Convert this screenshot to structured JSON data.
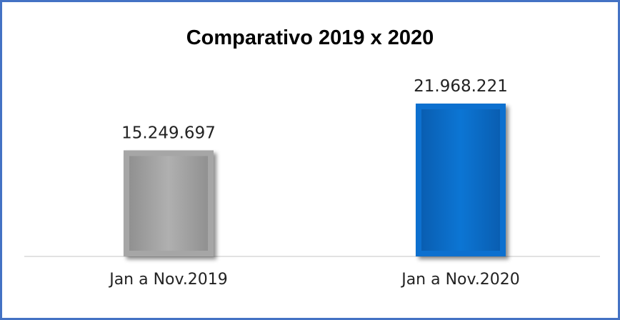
{
  "chart_data": {
    "type": "bar",
    "title": "Comparativo 2019 x 2020",
    "categories": [
      "Jan a Nov.2019",
      "Jan a Nov.2020"
    ],
    "values": [
      15249697,
      21968221
    ],
    "value_labels": [
      "15.249.697",
      "21.968.221"
    ],
    "colors": [
      "#a6a6a6",
      "#0a6fcf"
    ],
    "grid": false,
    "legend": "none"
  },
  "colors": {
    "border": "#4472c4",
    "axis": "#d9d9d9"
  }
}
